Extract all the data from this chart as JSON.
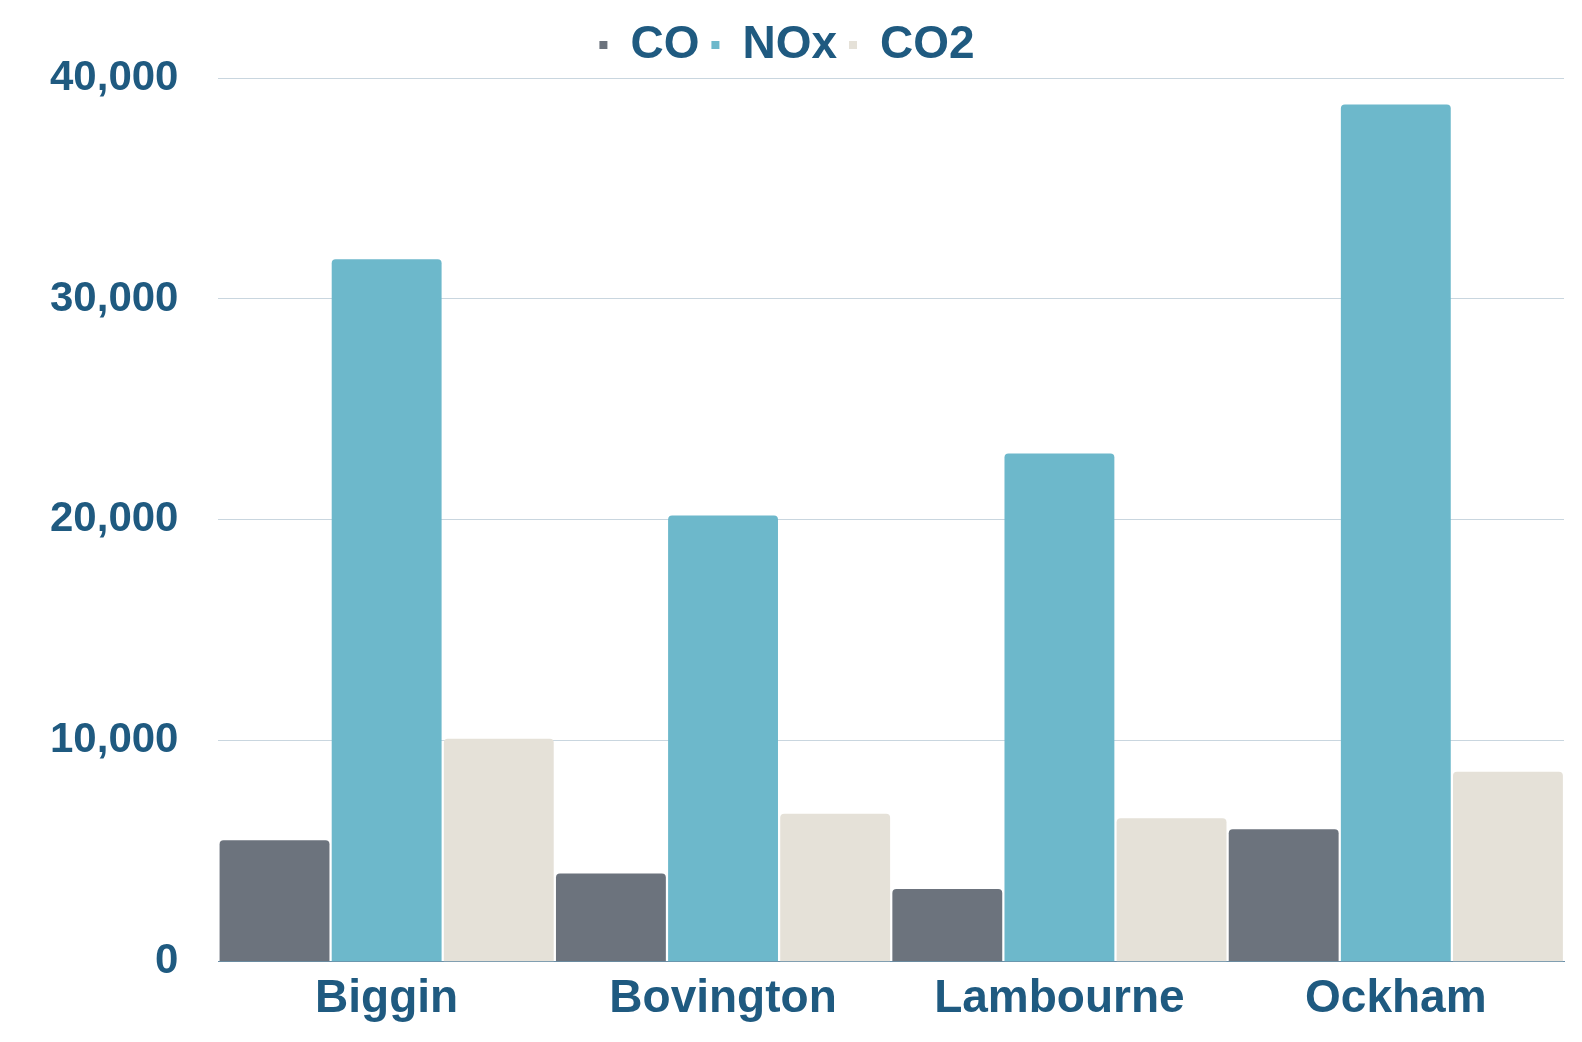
{
  "chart_data": {
    "type": "bar",
    "categories": [
      "Biggin",
      "Bovington",
      "Lambourne",
      "Ockham"
    ],
    "series": [
      {
        "name": "CO",
        "color": "#6c737d",
        "values": [
          5500,
          4000,
          3300,
          6000
        ]
      },
      {
        "name": "NOx",
        "color": "#6db8cb",
        "values": [
          31800,
          20200,
          23000,
          38800
        ]
      },
      {
        "name": "CO2",
        "color": "#e5e1d8",
        "values": [
          10100,
          6700,
          6500,
          8600
        ]
      }
    ],
    "ylim": [
      0,
      40000
    ],
    "yticks": [
      {
        "value": 0,
        "label": "0"
      },
      {
        "value": 10000,
        "label": "10,000"
      },
      {
        "value": 20000,
        "label": "20,000"
      },
      {
        "value": 30000,
        "label": "30,000"
      },
      {
        "value": 40000,
        "label": "40,000"
      }
    ],
    "grid": "y",
    "legend": "top"
  }
}
